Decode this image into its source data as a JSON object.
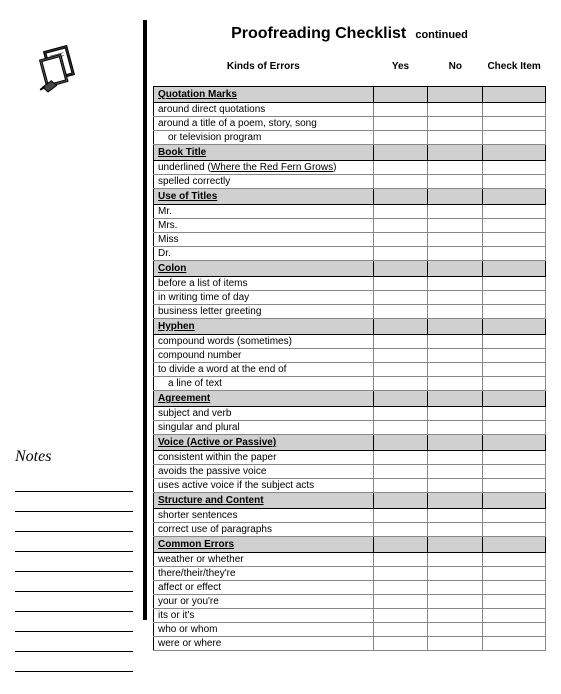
{
  "title": {
    "main": "Proofreading Checklist",
    "sub": "continued"
  },
  "headers": {
    "kinds": "Kinds of Errors",
    "yes": "Yes",
    "no": "No",
    "check": "Check Item"
  },
  "notes_label": "Notes",
  "sections": [
    {
      "heading": "Quotation Marks",
      "items": [
        {
          "text": "around direct quotations"
        },
        {
          "text": "around a title of a poem, story, song"
        },
        {
          "text": "or television program",
          "indent": true
        }
      ]
    },
    {
      "heading": "Book Title",
      "items": [
        {
          "text": "underlined (",
          "underlined_suffix": "Where the Red Fern Grows",
          "suffix": ")"
        },
        {
          "text": "spelled correctly"
        }
      ]
    },
    {
      "heading": "Use of Titles",
      "items": [
        {
          "text": "Mr."
        },
        {
          "text": "Mrs."
        },
        {
          "text": "Miss"
        },
        {
          "text": "Dr."
        }
      ]
    },
    {
      "heading": "Colon",
      "items": [
        {
          "text": "before a list of items"
        },
        {
          "text": "in writing time of day"
        },
        {
          "text": "business letter greeting"
        }
      ]
    },
    {
      "heading": "Hyphen",
      "items": [
        {
          "text": "compound words (sometimes)"
        },
        {
          "text": "compound number"
        },
        {
          "text": "to divide a word at the end of"
        },
        {
          "text": "a line of text",
          "indent": true
        }
      ]
    },
    {
      "heading": "Agreement",
      "items": [
        {
          "text": "subject and verb"
        },
        {
          "text": "singular and plural"
        }
      ]
    },
    {
      "heading": "Voice (Active or Passive)",
      "items": [
        {
          "text": "consistent within the paper"
        },
        {
          "text": "avoids the passive voice"
        },
        {
          "text": "uses active voice if the subject acts"
        }
      ]
    },
    {
      "heading": "Structure and Content",
      "items": [
        {
          "text": "shorter sentences"
        },
        {
          "text": "correct use of paragraphs"
        }
      ]
    },
    {
      "heading": "Common Errors",
      "items": [
        {
          "text": "weather or whether"
        },
        {
          "text": "there/their/they're"
        },
        {
          "text": "affect or effect"
        },
        {
          "text": "your or you're"
        },
        {
          "text": "its or it's"
        },
        {
          "text": "who or whom"
        },
        {
          "text": "were or where"
        }
      ]
    }
  ],
  "note_line_count": 10,
  "colors": {
    "section_bg": "#d0d0d0",
    "border": "#000000",
    "light_border": "#888888"
  }
}
